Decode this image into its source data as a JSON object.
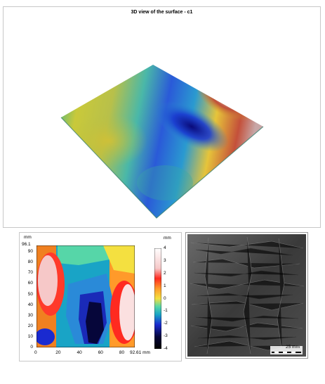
{
  "view3d": {
    "title": "3D view of the surface - c1"
  },
  "map": {
    "y_unit": "mm",
    "y_top_label": "96.1",
    "y_ticks": [
      "90",
      "80",
      "70",
      "60",
      "50",
      "40",
      "30",
      "20",
      "10",
      "0"
    ],
    "x_ticks": [
      "0",
      "20",
      "40",
      "60",
      "80"
    ],
    "x_end_label": "92.61 mm",
    "scale_unit": "mm",
    "scale_ticks": [
      "4",
      "3",
      "2",
      "1",
      "0",
      "-1",
      "-2",
      "-3",
      "-4"
    ]
  },
  "shaded": {
    "scale_label": "25 mm"
  },
  "colors": {
    "panel_border": "#c8c8c8",
    "background": "#ffffff"
  }
}
